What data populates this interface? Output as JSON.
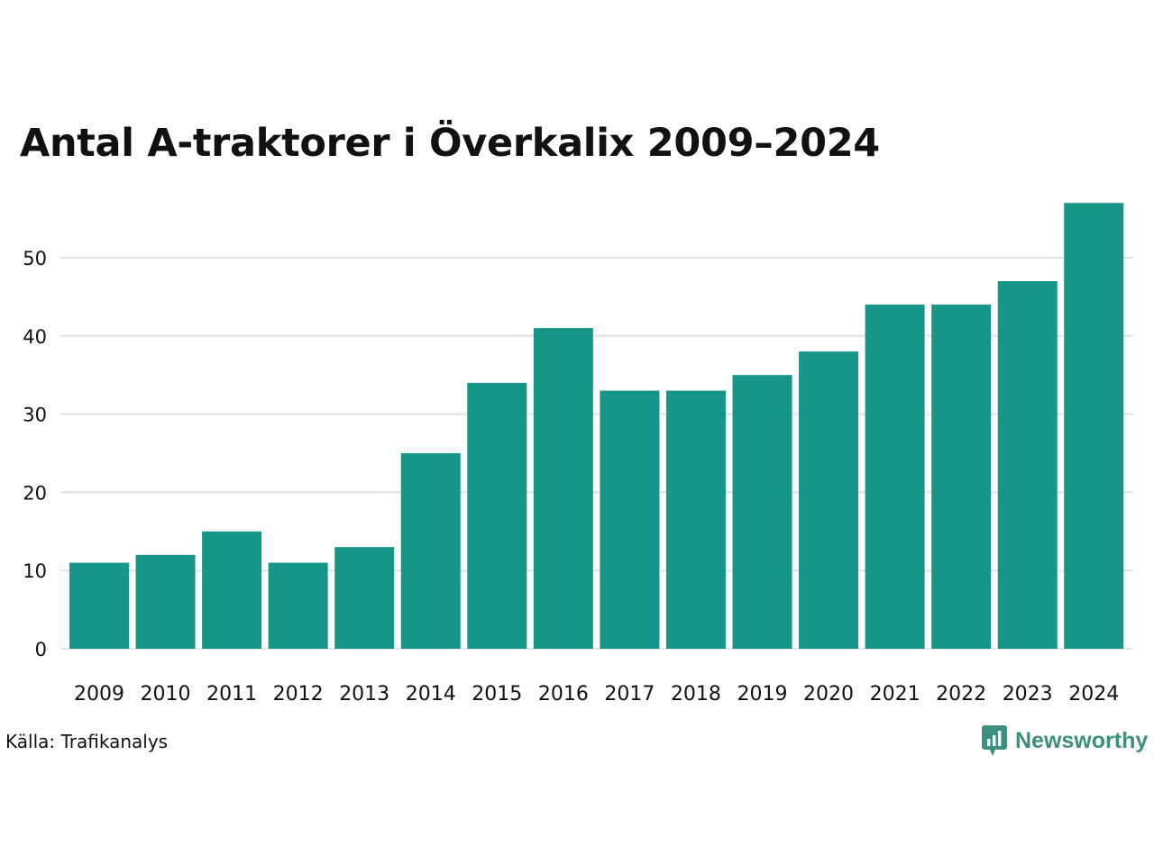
{
  "title": "Antal A-traktorer i Överkalix 2009–2024",
  "source": "Källa: Trafikanalys",
  "brand": {
    "name": "Newsworthy",
    "icon": "newsworthy-logo-icon",
    "color": "#3f8f80"
  },
  "colors": {
    "bar": "#159688",
    "grid": "#e2e2e2",
    "text": "#111111"
  },
  "chart_data": {
    "type": "bar",
    "title": "Antal A-traktorer i Överkalix 2009–2024",
    "xlabel": "",
    "ylabel": "",
    "categories": [
      "2009",
      "2010",
      "2011",
      "2012",
      "2013",
      "2014",
      "2015",
      "2016",
      "2017",
      "2018",
      "2019",
      "2020",
      "2021",
      "2022",
      "2023",
      "2024"
    ],
    "values": [
      11,
      12,
      15,
      11,
      13,
      25,
      34,
      41,
      33,
      33,
      35,
      38,
      44,
      44,
      47,
      57
    ],
    "ylim": [
      0,
      57
    ],
    "yticks": [
      0,
      10,
      20,
      30,
      40,
      50
    ],
    "grid": true,
    "legend": "none"
  }
}
